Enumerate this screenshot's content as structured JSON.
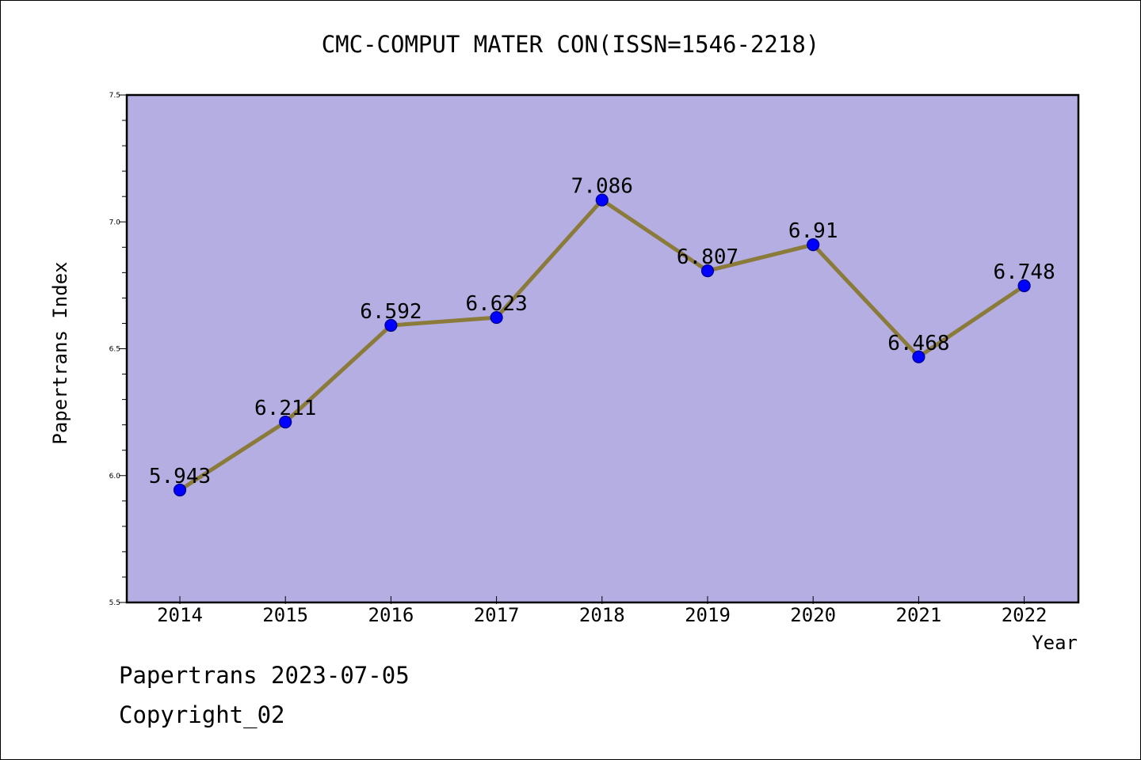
{
  "chart_data": {
    "type": "line",
    "title": "CMC-COMPUT MATER CON(ISSN=1546-2218)",
    "xlabel": "Year",
    "ylabel": "Papertrans Index",
    "categories": [
      "2014",
      "2015",
      "2016",
      "2017",
      "2018",
      "2019",
      "2020",
      "2021",
      "2022"
    ],
    "series": [
      {
        "values": [
          5.943,
          6.211,
          6.592,
          6.623,
          7.086,
          6.807,
          6.91,
          6.468,
          6.748
        ]
      }
    ],
    "data_labels": [
      "5.943",
      "6.211",
      "6.592",
      "6.623",
      "7.086",
      "6.807",
      "6.91",
      "6.468",
      "6.748"
    ],
    "ylim": [
      5.5,
      7.5
    ],
    "y_ticks": [
      "5.5",
      "6.0",
      "6.5",
      "7.0",
      "7.5"
    ],
    "y_tick_values": [
      5.5,
      6.0,
      6.5,
      7.0,
      7.5
    ],
    "y_minor_step": 0.1,
    "grid": false,
    "colors": {
      "plot_background": "#b5aee2",
      "line": "#8b7b3a",
      "marker": "#0000ff",
      "marker_edge": "#00008b"
    }
  },
  "footer": {
    "source": "Papertrans 2023-07-05",
    "copyright": "Copyright_02"
  }
}
